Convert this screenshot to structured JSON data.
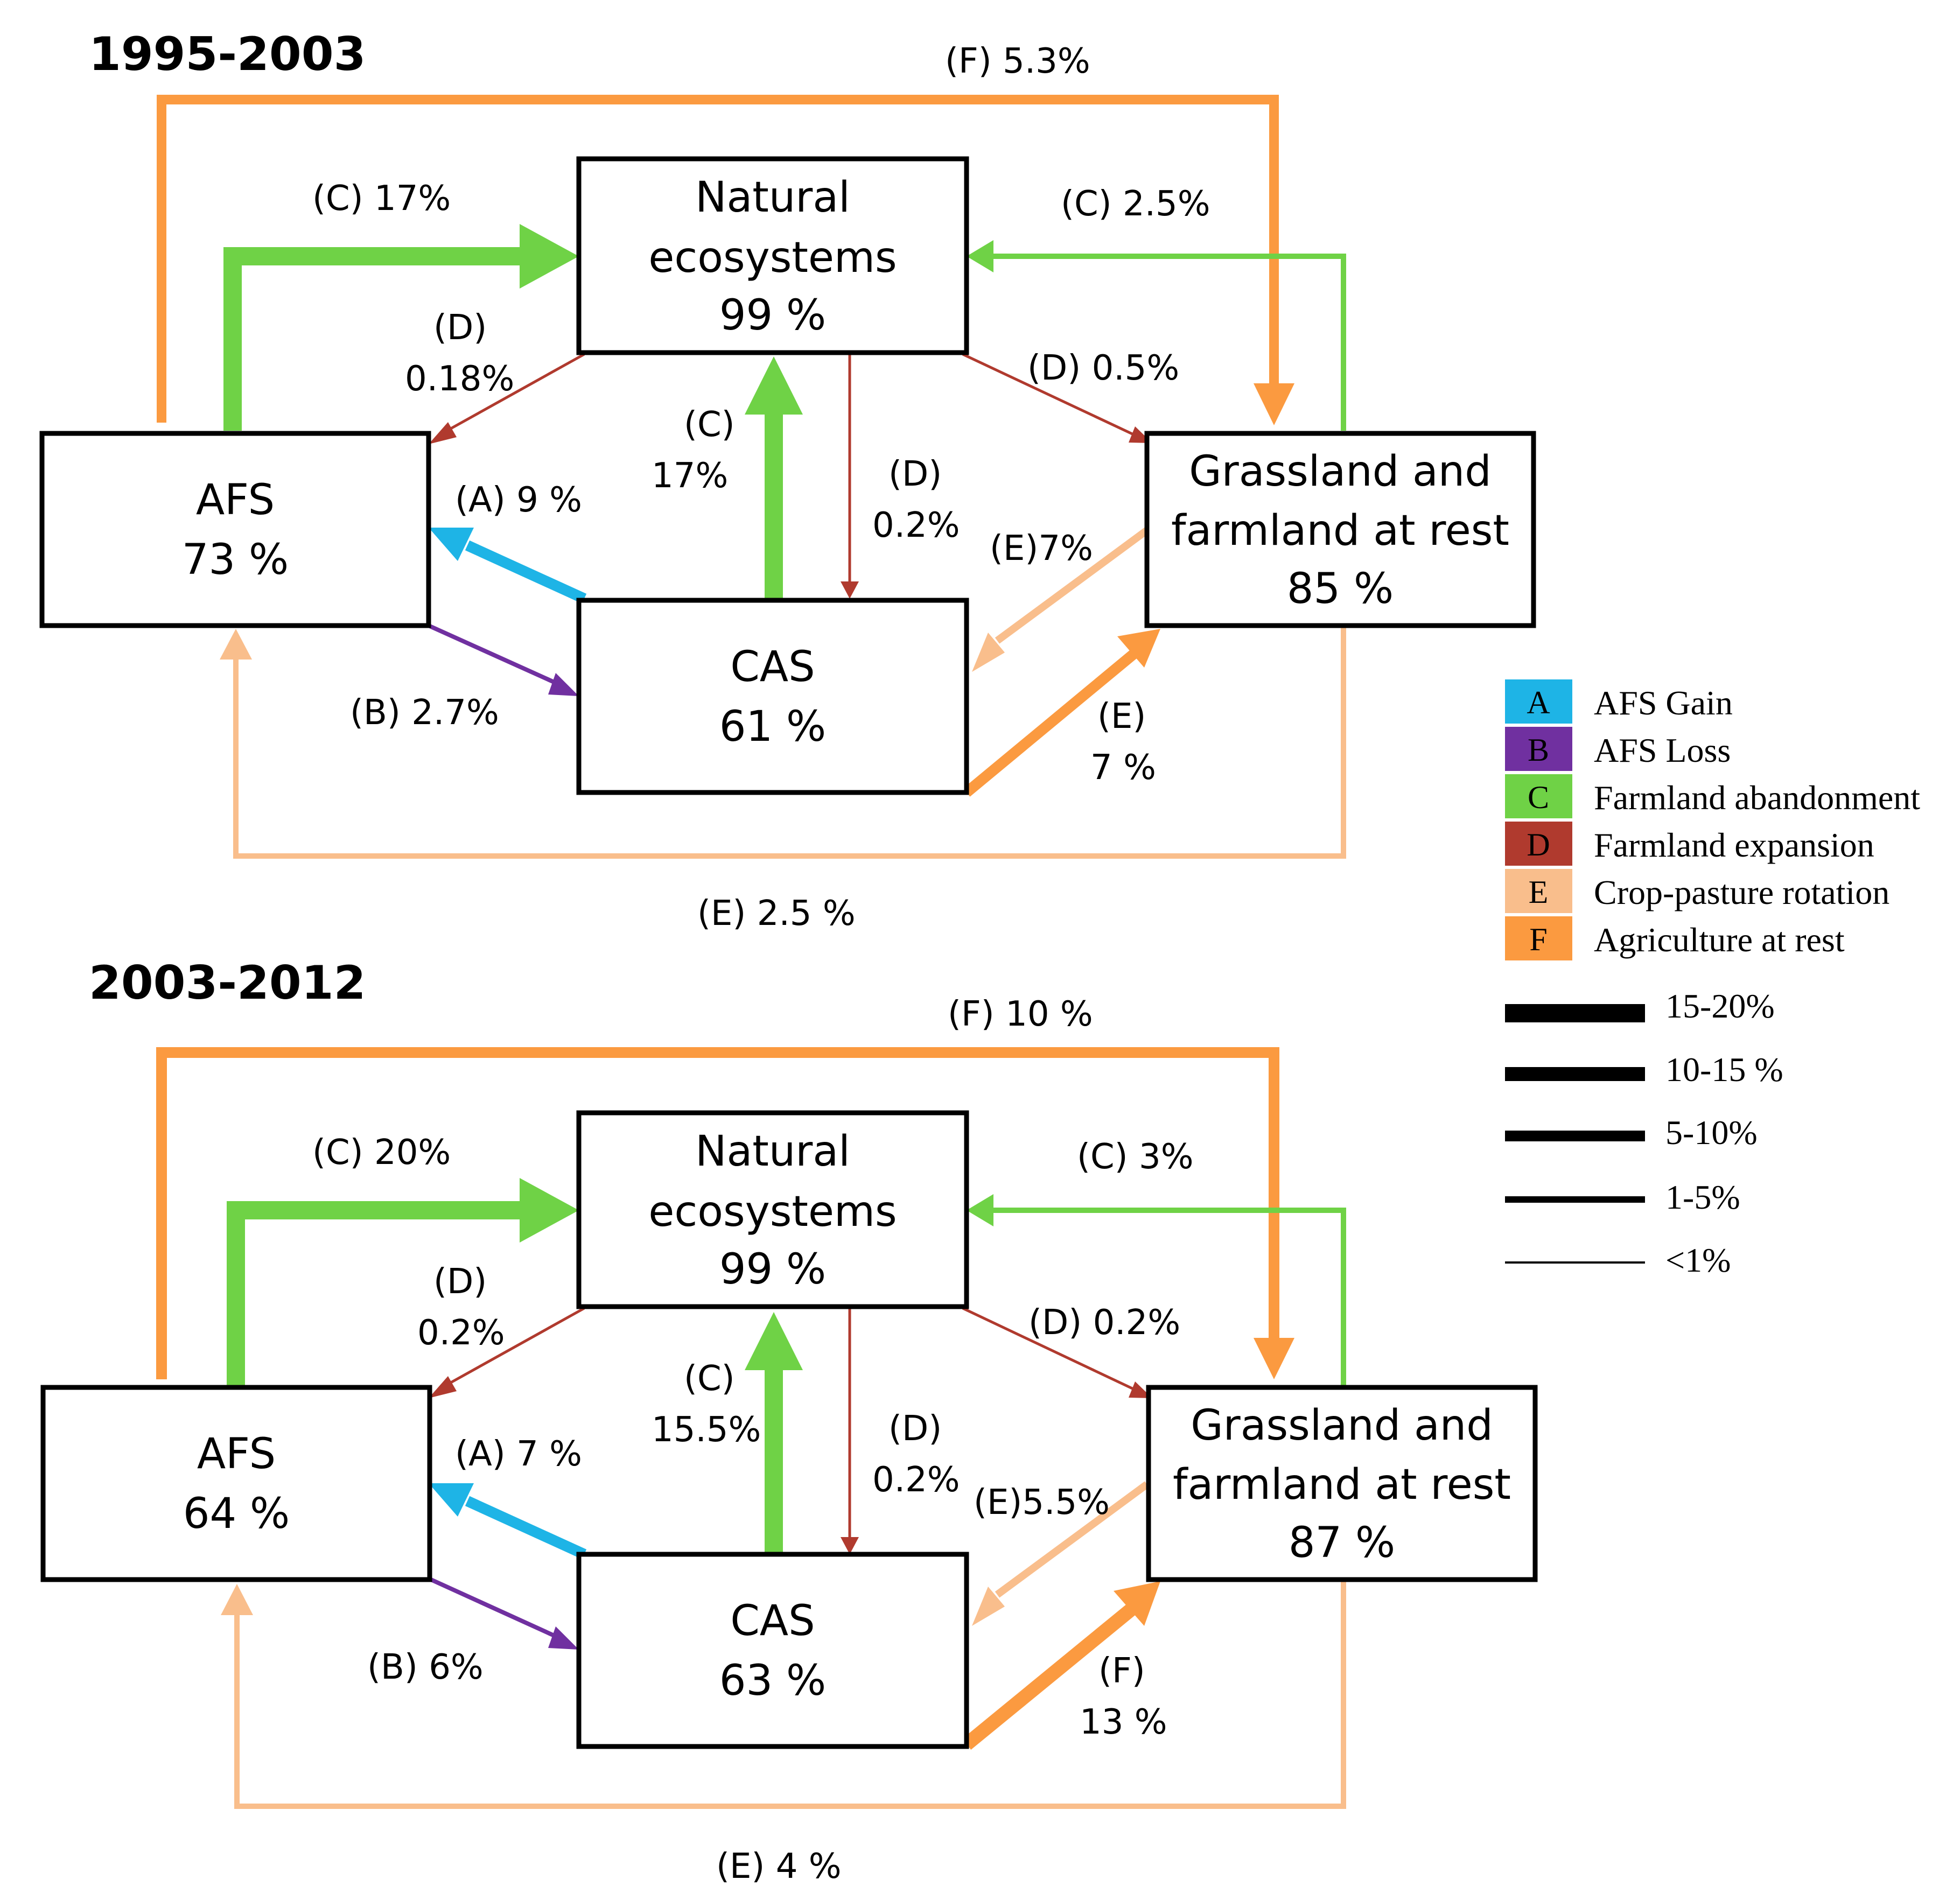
{
  "colors": {
    "A": "#1eb4e6",
    "B": "#7030a0",
    "C": "#6fd246",
    "D": "#b03a2e",
    "E": "#f9be8c",
    "F": "#fb9a40"
  },
  "panels": [
    {
      "title": "1995-2003",
      "nodes": {
        "natural": [
          "Natural",
          "ecosystems",
          "99 %"
        ],
        "afs": [
          "AFS",
          "73 %"
        ],
        "cas": [
          "CAS",
          "61 %"
        ],
        "grass": [
          "Grassland and",
          "farmland at rest",
          "85 %"
        ]
      },
      "flows": {
        "f_top": "(F) 5.3%",
        "c_afs_nat": "(C) 17%",
        "c_grass_nat": "(C) 2.5%",
        "d_nat_afs": [
          "(D)",
          "0.18%"
        ],
        "d_nat_grass": "(D) 0.5%",
        "c_cas_nat": [
          "(C)",
          "17%"
        ],
        "d_nat_cas": [
          "(D)",
          "0.2%"
        ],
        "a_cas_afs": "(A) 9 %",
        "e_grass_cas": "(E)7%",
        "b_afs_cas": "(B) 2.7%",
        "cas_grass": [
          "(E)",
          "7 %"
        ],
        "e_bottom": "(E) 2.5 %"
      }
    },
    {
      "title": "2003-2012",
      "nodes": {
        "natural": [
          "Natural",
          "ecosystems",
          "99 %"
        ],
        "afs": [
          "AFS",
          "64 %"
        ],
        "cas": [
          "CAS",
          "63 %"
        ],
        "grass": [
          "Grassland and",
          "farmland at rest",
          "87 %"
        ]
      },
      "flows": {
        "f_top": "(F) 10 %",
        "c_afs_nat": "(C) 20%",
        "c_grass_nat": "(C) 3%",
        "d_nat_afs": [
          "(D)",
          "0.2%"
        ],
        "d_nat_grass": "(D) 0.2%",
        "c_cas_nat": [
          "(C)",
          "15.5%"
        ],
        "d_nat_cas": [
          "(D)",
          "0.2%"
        ],
        "a_cas_afs": "(A) 7 %",
        "e_grass_cas": "(E)5.5%",
        "b_afs_cas": "(B) 6%",
        "cas_grass": [
          "(F)",
          "13 %"
        ],
        "e_bottom": "(E) 4 %"
      }
    }
  ],
  "legend": {
    "categories": [
      {
        "letter": "A",
        "label": "AFS Gain"
      },
      {
        "letter": "B",
        "label": "AFS Loss"
      },
      {
        "letter": "C",
        "label": "Farmland abandonment"
      },
      {
        "letter": "D",
        "label": "Farmland expansion"
      },
      {
        "letter": "E",
        "label": "Crop-pasture rotation"
      },
      {
        "letter": "F",
        "label": "Agriculture at rest"
      }
    ],
    "widths": [
      "15-20%",
      "10-15 %",
      "5-10%",
      "1-5%",
      "<1%"
    ]
  }
}
